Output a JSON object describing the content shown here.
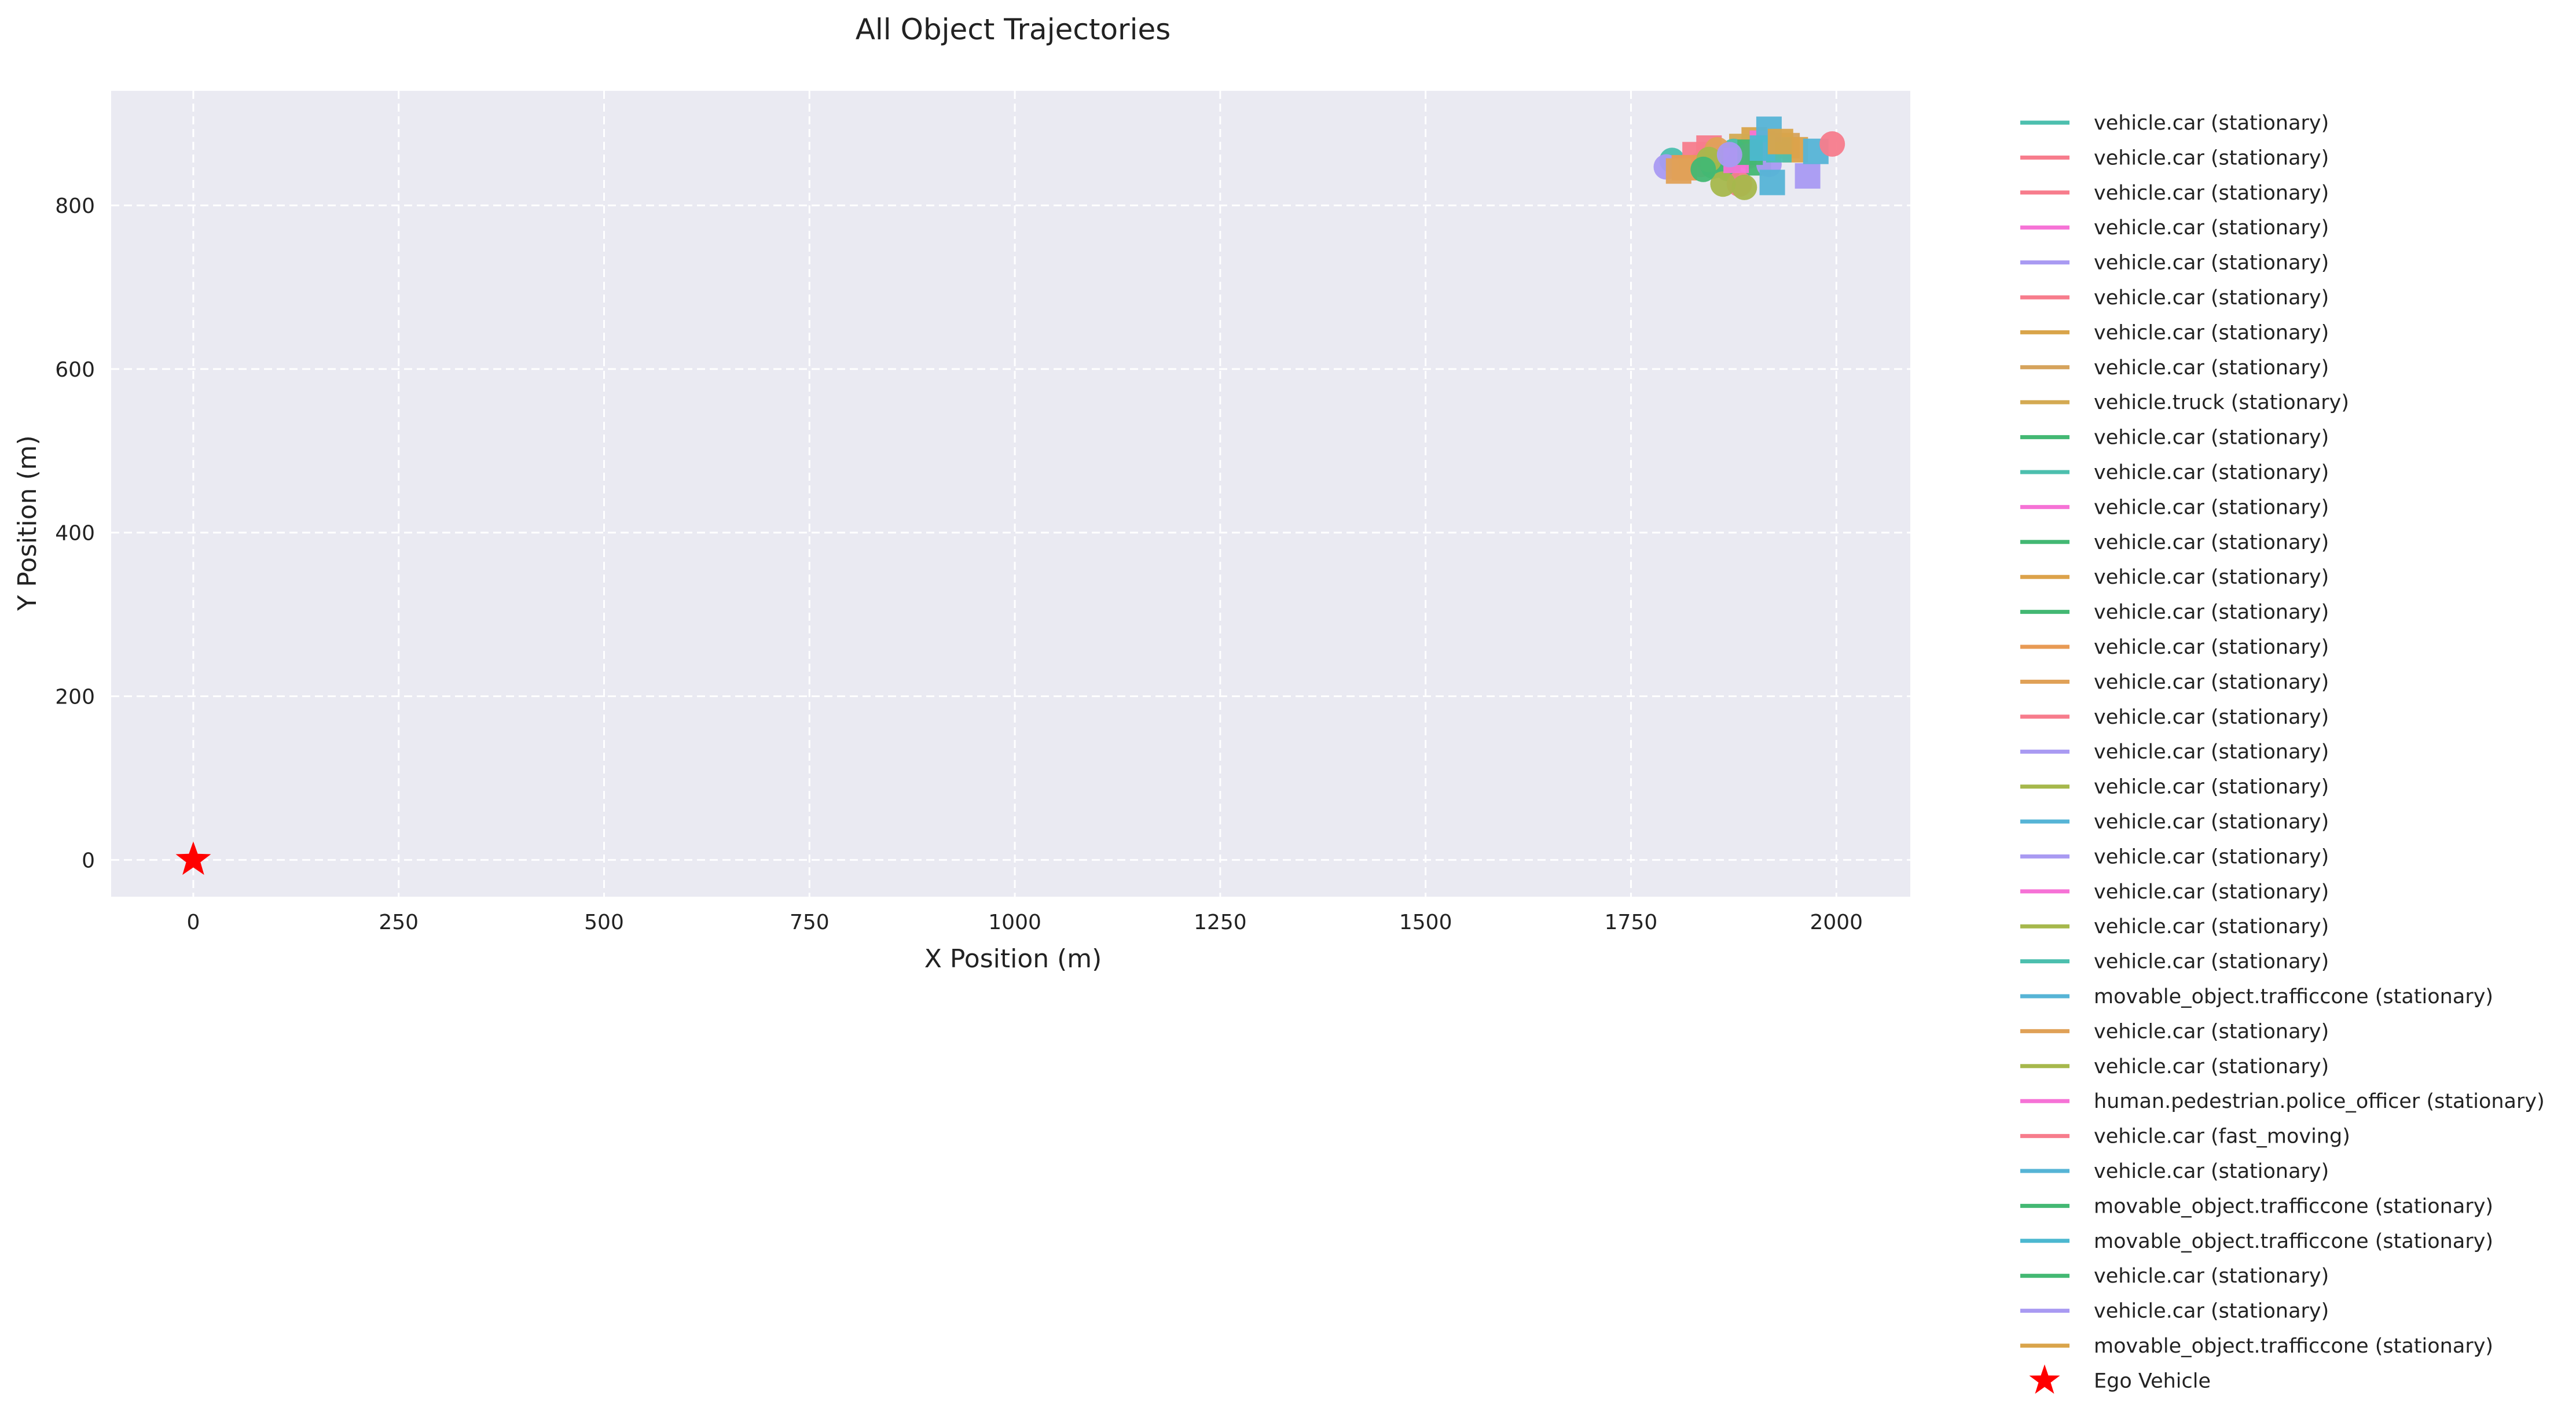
{
  "chart_data": {
    "type": "scatter",
    "title": "All Object Trajectories",
    "xlabel": "X Position (m)",
    "ylabel": "Y Position (m)",
    "xlim": [
      -100,
      2090
    ],
    "ylim": [
      -45,
      940
    ],
    "xticks": [
      0,
      250,
      500,
      750,
      1000,
      1250,
      1500,
      1750,
      2000
    ],
    "yticks": [
      0,
      200,
      400,
      600,
      800
    ],
    "grid": true,
    "grid_style": "dashed",
    "background_color": "#eaeaf2",
    "legend_position": "outside-right",
    "ego": {
      "label": "Ego Vehicle",
      "x": 0,
      "y": 0,
      "marker": "star",
      "color": "#ff0000"
    },
    "series": [
      {
        "name": "vehicle.car (stationary)",
        "color": "#4cbfae",
        "x": 1800,
        "y": 855,
        "marker": "circle"
      },
      {
        "name": "vehicle.car (stationary)",
        "color": "#f77c8c",
        "x": 1828,
        "y": 862,
        "marker": "square"
      },
      {
        "name": "vehicle.car (stationary)",
        "color": "#f77c8c",
        "x": 1845,
        "y": 870,
        "marker": "square"
      },
      {
        "name": "vehicle.car (stationary)",
        "color": "#f672d6",
        "x": 1860,
        "y": 858,
        "marker": "square"
      },
      {
        "name": "vehicle.car (stationary)",
        "color": "#a99af2",
        "x": 1793,
        "y": 847,
        "marker": "circle"
      },
      {
        "name": "vehicle.car (stationary)",
        "color": "#f77c8c",
        "x": 1835,
        "y": 850,
        "marker": "circle"
      },
      {
        "name": "vehicle.car (stationary)",
        "color": "#d9a44a",
        "x": 1900,
        "y": 880,
        "marker": "square"
      },
      {
        "name": "vehicle.car (stationary)",
        "color": "#d6a35c",
        "x": 1940,
        "y": 873,
        "marker": "square"
      },
      {
        "name": "vehicle.truck (stationary)",
        "color": "#d4aa52",
        "x": 1885,
        "y": 872,
        "marker": "square"
      },
      {
        "name": "vehicle.car (stationary)",
        "color": "#43b873",
        "x": 1850,
        "y": 848,
        "marker": "circle"
      },
      {
        "name": "vehicle.car (stationary)",
        "color": "#4cbfae",
        "x": 1875,
        "y": 866,
        "marker": "circle"
      },
      {
        "name": "vehicle.car (stationary)",
        "color": "#f672d6",
        "x": 1892,
        "y": 860,
        "marker": "circle"
      },
      {
        "name": "vehicle.car (stationary)",
        "color": "#43b873",
        "x": 1905,
        "y": 852,
        "marker": "square"
      },
      {
        "name": "vehicle.car (stationary)",
        "color": "#dca24a",
        "x": 1950,
        "y": 868,
        "marker": "square"
      },
      {
        "name": "vehicle.car (stationary)",
        "color": "#43b873",
        "x": 1868,
        "y": 845,
        "marker": "circle"
      },
      {
        "name": "vehicle.car (stationary)",
        "color": "#e89a54",
        "x": 1815,
        "y": 846,
        "marker": "square"
      },
      {
        "name": "vehicle.car (stationary)",
        "color": "#e0a157",
        "x": 1808,
        "y": 842,
        "marker": "square"
      },
      {
        "name": "vehicle.car (stationary)",
        "color": "#f77c8c",
        "x": 1882,
        "y": 826,
        "marker": "circle"
      },
      {
        "name": "vehicle.car (stationary)",
        "color": "#a99af2",
        "x": 1965,
        "y": 836,
        "marker": "square"
      },
      {
        "name": "vehicle.car (stationary)",
        "color": "#a6b84c",
        "x": 1862,
        "y": 826,
        "marker": "circle"
      },
      {
        "name": "vehicle.car (stationary)",
        "color": "#56b4d6",
        "x": 1975,
        "y": 866,
        "marker": "square"
      },
      {
        "name": "vehicle.car (stationary)",
        "color": "#a99af2",
        "x": 1918,
        "y": 850,
        "marker": "circle"
      },
      {
        "name": "vehicle.car (stationary)",
        "color": "#f672d6",
        "x": 1910,
        "y": 876,
        "marker": "square"
      },
      {
        "name": "vehicle.car (stationary)",
        "color": "#a6b84c",
        "x": 1888,
        "y": 822,
        "marker": "circle"
      },
      {
        "name": "vehicle.car (stationary)",
        "color": "#4cbfae",
        "x": 1930,
        "y": 868,
        "marker": "square"
      },
      {
        "name": "movable_object.trafficcone (stationary)",
        "color": "#56b4d6",
        "x": 1922,
        "y": 828,
        "marker": "square"
      },
      {
        "name": "vehicle.car (stationary)",
        "color": "#e0a157",
        "x": 1855,
        "y": 868,
        "marker": "circle"
      },
      {
        "name": "vehicle.car (stationary)",
        "color": "#a6b84c",
        "x": 1845,
        "y": 856,
        "marker": "circle"
      },
      {
        "name": "human.pedestrian.police_officer (stationary)",
        "color": "#f672d6",
        "x": 1878,
        "y": 855,
        "marker": "square"
      },
      {
        "name": "vehicle.car (fast_moving)",
        "color": "#f77c8c",
        "x": 1995,
        "y": 875,
        "marker": "circle"
      },
      {
        "name": "vehicle.car (stationary)",
        "color": "#56b4d6",
        "x": 1918,
        "y": 893,
        "marker": "square"
      },
      {
        "name": "movable_object.trafficcone (stationary)",
        "color": "#43b873",
        "x": 1895,
        "y": 865,
        "marker": "square"
      },
      {
        "name": "movable_object.trafficcone (stationary)",
        "color": "#4cb8d0",
        "x": 1910,
        "y": 870,
        "marker": "square"
      },
      {
        "name": "vehicle.car (stationary)",
        "color": "#43b873",
        "x": 1838,
        "y": 844,
        "marker": "circle"
      },
      {
        "name": "vehicle.car (stationary)",
        "color": "#a99af2",
        "x": 1870,
        "y": 862,
        "marker": "circle"
      },
      {
        "name": "movable_object.trafficcone (stationary)",
        "color": "#d9a44a",
        "x": 1932,
        "y": 878,
        "marker": "square"
      }
    ]
  }
}
